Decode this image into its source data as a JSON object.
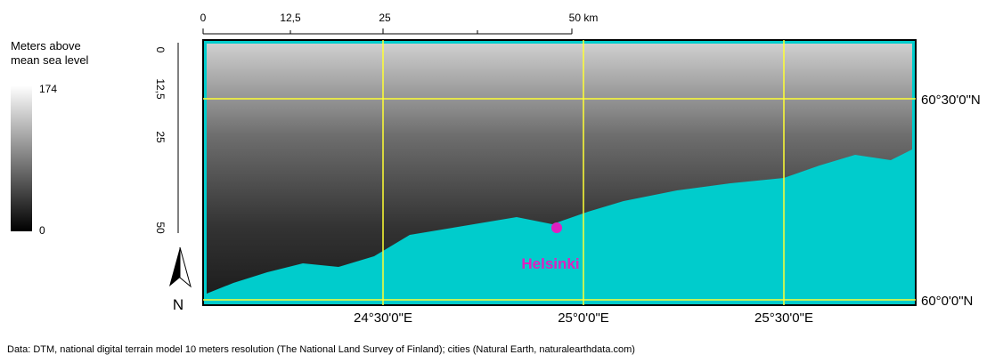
{
  "legend": {
    "title_lines": [
      "Meters above",
      "mean sea level"
    ],
    "max": "174",
    "min": "0"
  },
  "scale_bar": {
    "labels": [
      "0",
      "12,5",
      "25",
      "50 km"
    ]
  },
  "vertical_scale": {
    "labels": [
      "0",
      "12,5",
      "25",
      "50"
    ]
  },
  "graticule": {
    "longitudes": [
      "24°30'0\"E",
      "25°0'0\"E",
      "25°30'0\"E"
    ],
    "latitudes": [
      "60°30'0\"N",
      "60°0'0\"N"
    ]
  },
  "city": {
    "name": "Helsinki"
  },
  "north_arrow": {
    "label": "N"
  },
  "footer": "Data: DTM, national digital terrain model 10 meters resolution (The National Land Survey of Finland); cities (Natural Earth, naturalearthdata.com)"
}
